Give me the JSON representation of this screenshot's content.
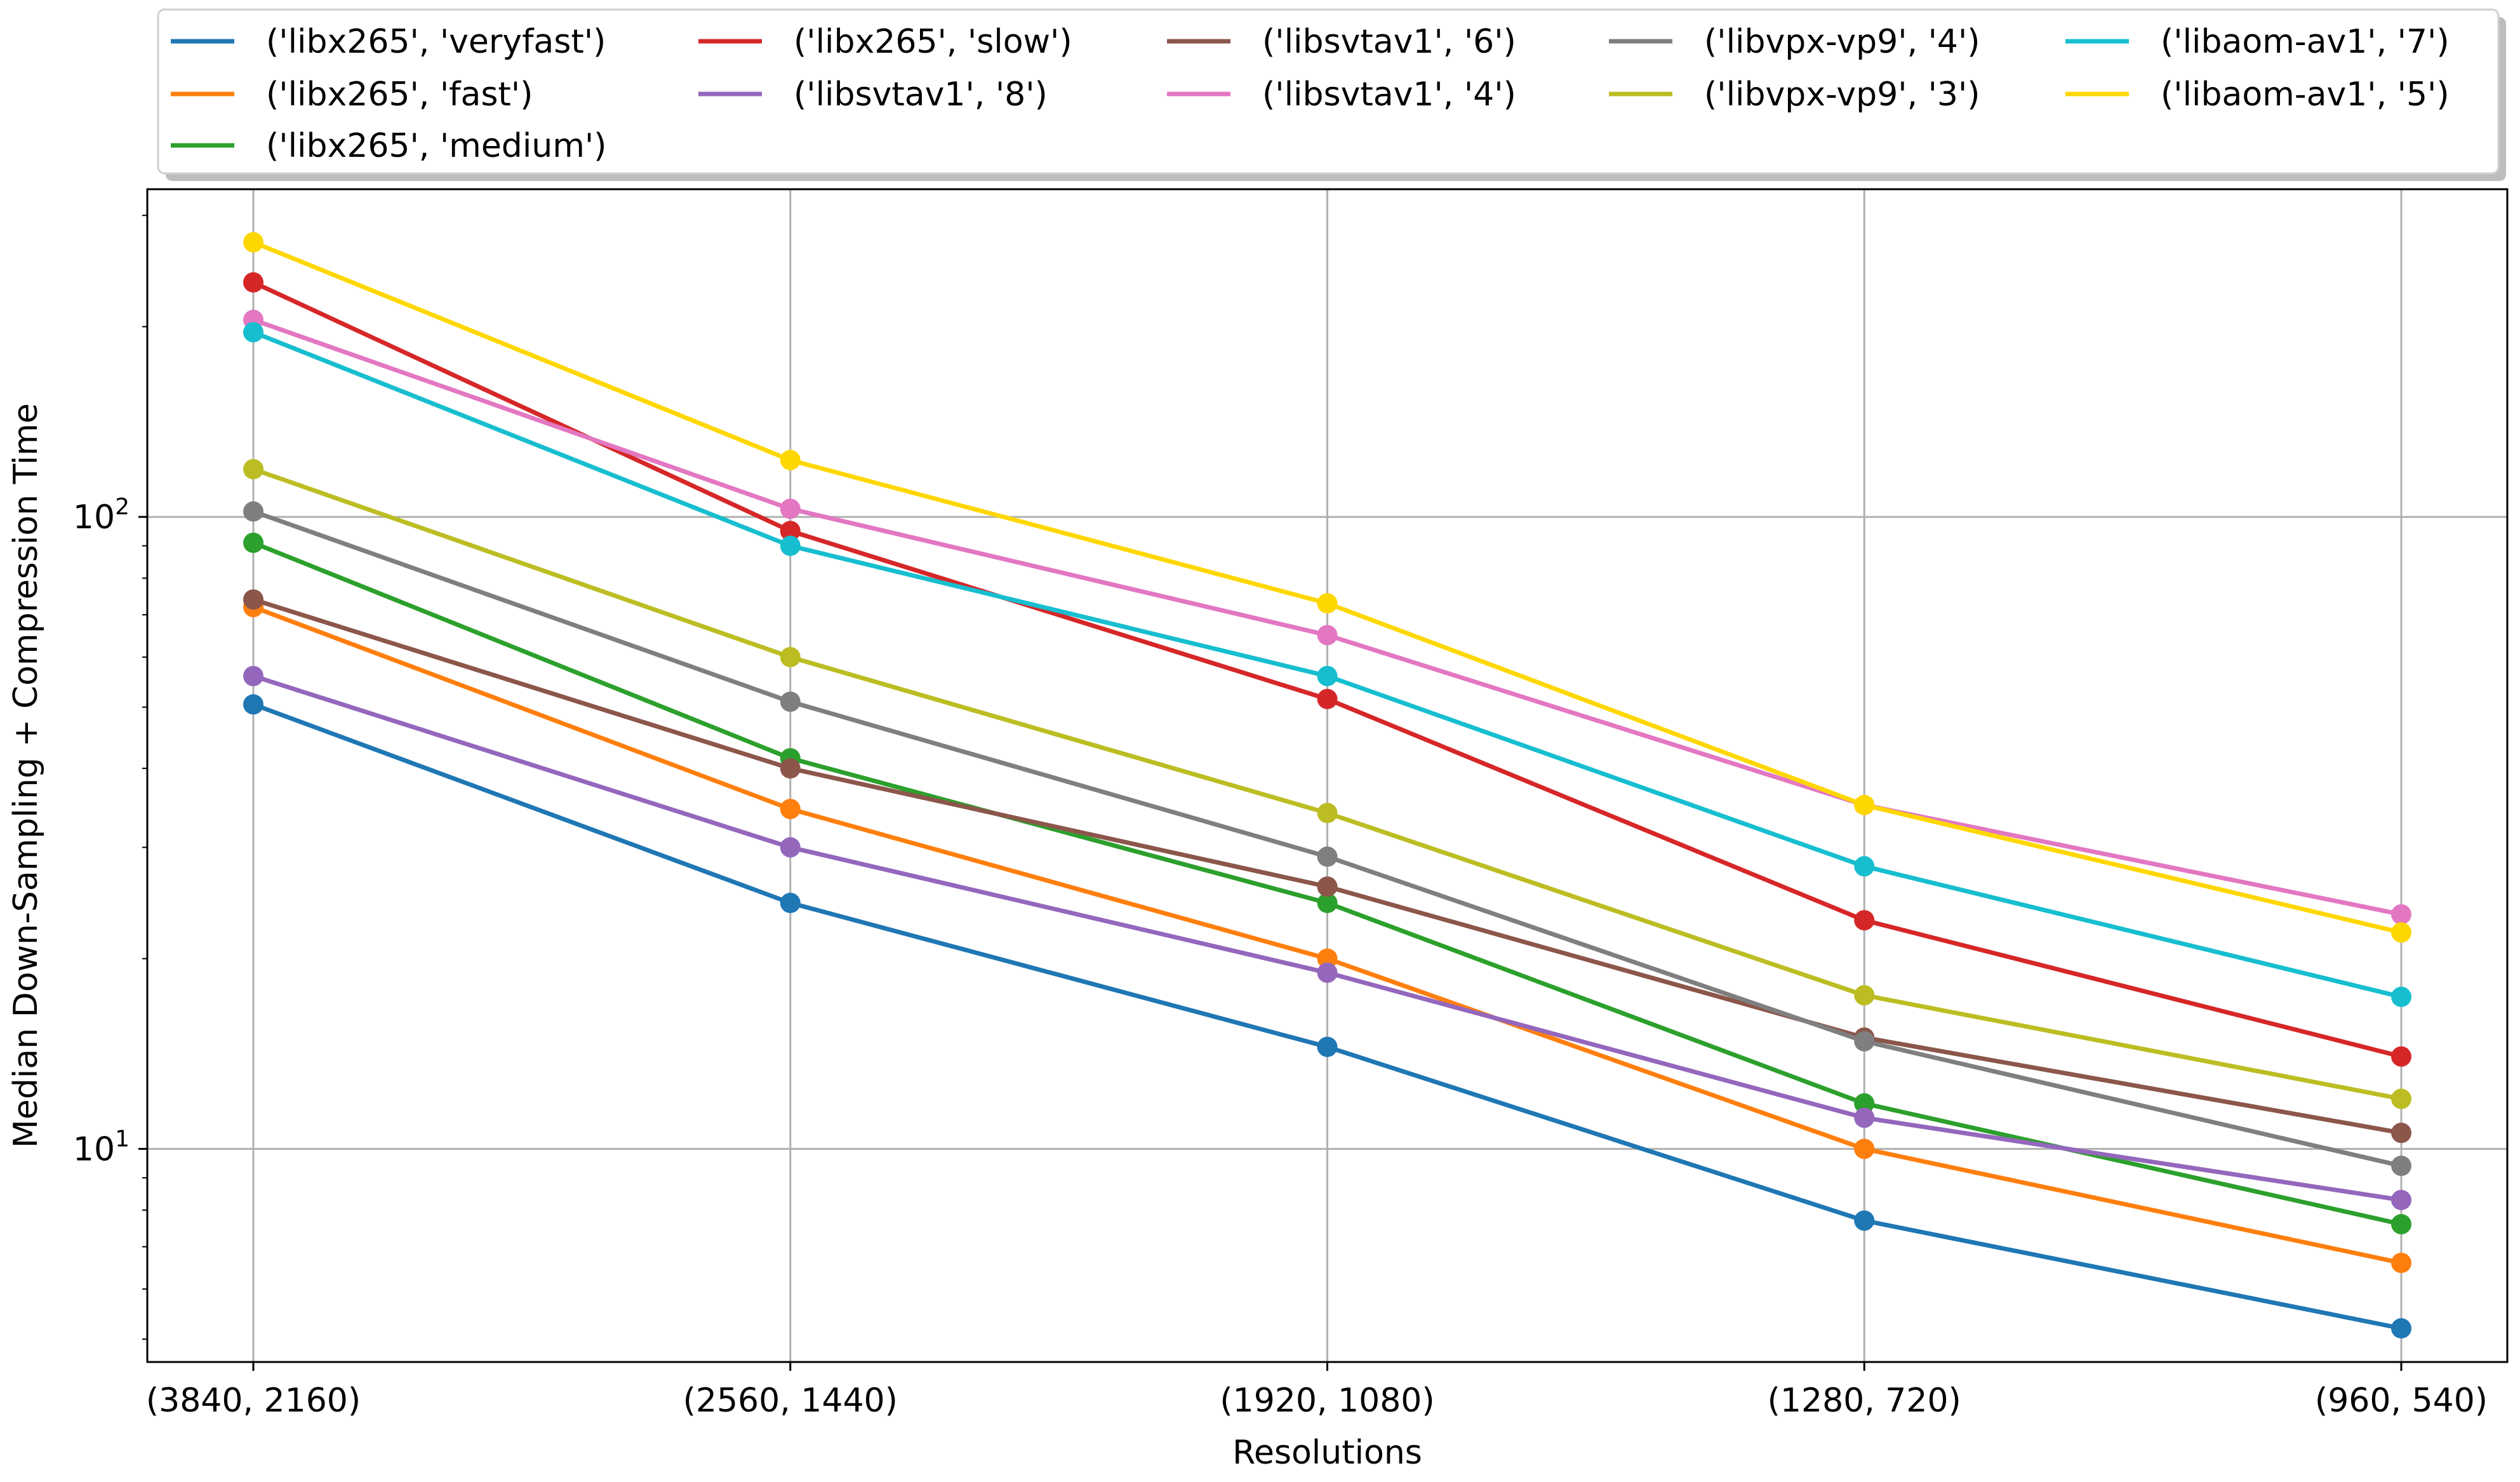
{
  "chart_data": {
    "type": "line",
    "title": "",
    "xlabel": "Resolutions",
    "ylabel": "Median Down-Sampling + Compression Time",
    "yscale": "log",
    "ylim": [
      4.6,
      330
    ],
    "grid": true,
    "legend_position": "top",
    "categories": [
      "(3840, 2160)",
      "(2560, 1440)",
      "(1920, 1080)",
      "(1280, 720)",
      "(960, 540)"
    ],
    "y_ticks": [
      {
        "value": 10,
        "base": "10",
        "exp": "1"
      },
      {
        "value": 100,
        "base": "10",
        "exp": "2"
      }
    ],
    "series": [
      {
        "name": "('libx265', 'veryfast')",
        "color": "#1f77b4",
        "values": [
          50.5,
          24.5,
          14.5,
          7.7,
          5.2
        ]
      },
      {
        "name": "('libx265', 'fast')",
        "color": "#ff7f0e",
        "values": [
          72,
          34.5,
          20,
          10,
          6.6
        ]
      },
      {
        "name": "('libx265', 'medium')",
        "color": "#2ca02c",
        "values": [
          91,
          41.5,
          24.5,
          11.8,
          7.6
        ]
      },
      {
        "name": "('libx265', 'slow')",
        "color": "#d62728",
        "values": [
          235,
          95,
          51.5,
          23,
          14
        ]
      },
      {
        "name": "('libsvtav1', '8')",
        "color": "#9467bd",
        "values": [
          56,
          30,
          19,
          11.2,
          8.3
        ]
      },
      {
        "name": "('libsvtav1', '6')",
        "color": "#8c564b",
        "values": [
          74,
          40,
          26,
          15,
          10.6
        ]
      },
      {
        "name": "('libsvtav1', '4')",
        "color": "#e377c2",
        "values": [
          205,
          103,
          65,
          35,
          23.5
        ]
      },
      {
        "name": "('libvpx-vp9', '4')",
        "color": "#7f7f7f",
        "values": [
          102,
          51,
          29,
          14.8,
          9.4
        ]
      },
      {
        "name": "('libvpx-vp9', '3')",
        "color": "#bcbd22",
        "values": [
          119,
          60,
          34,
          17.5,
          12
        ]
      },
      {
        "name": "('libaom-av1', '7')",
        "color": "#17becf",
        "values": [
          196,
          90,
          56,
          28,
          17.4
        ]
      },
      {
        "name": "('libaom-av1', '5')",
        "color": "#ffd700",
        "values": [
          272,
          123,
          73,
          35,
          22
        ]
      }
    ]
  }
}
